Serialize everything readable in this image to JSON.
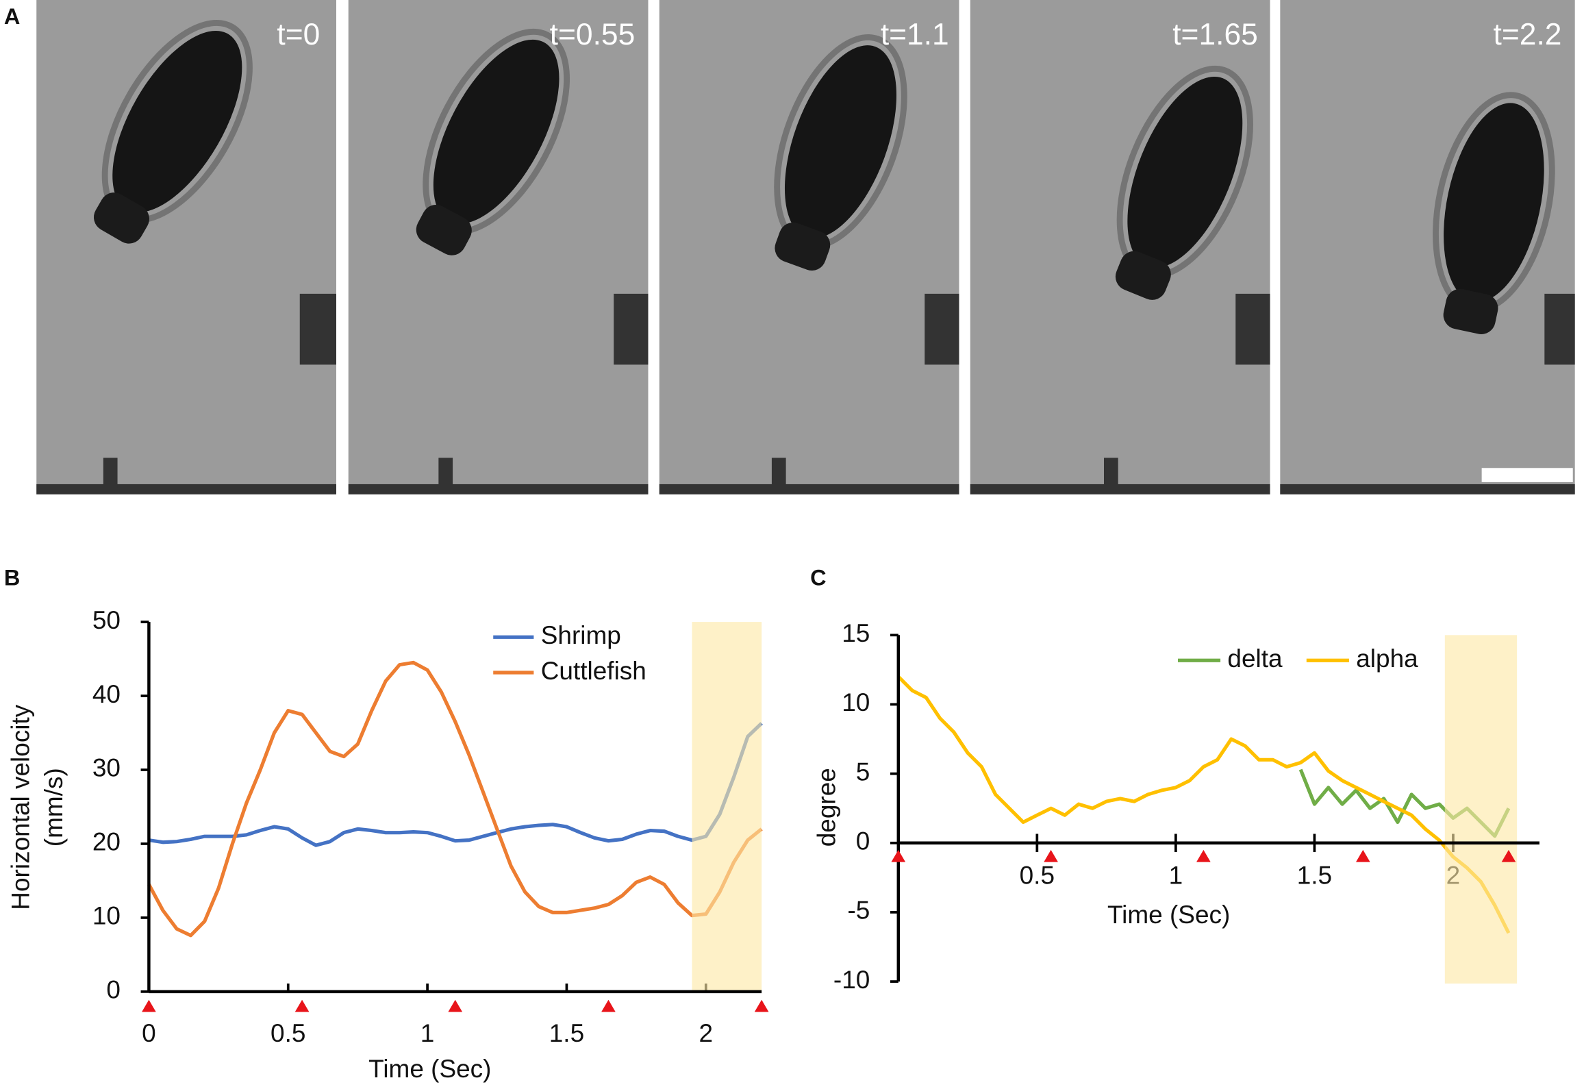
{
  "panel_a": {
    "letter": "A",
    "frames": [
      "t=0",
      "t=0.55",
      "t=1.1",
      "t=1.65",
      "t=2.2"
    ]
  },
  "chart_data": [
    {
      "type": "line",
      "letter": "B",
      "x_label": "Time (Sec)",
      "y_label": [
        "Horizontal velocity",
        "(mm/s)"
      ],
      "x": [
        0,
        0.05,
        0.1,
        0.15,
        0.2,
        0.25,
        0.3,
        0.35,
        0.4,
        0.45,
        0.5,
        0.55,
        0.6,
        0.65,
        0.7,
        0.75,
        0.8,
        0.85,
        0.9,
        0.95,
        1,
        1.05,
        1.1,
        1.15,
        1.2,
        1.25,
        1.3,
        1.35,
        1.4,
        1.45,
        1.5,
        1.55,
        1.6,
        1.65,
        1.7,
        1.75,
        1.8,
        1.85,
        1.9,
        1.95,
        2,
        2.05,
        2.1,
        2.15,
        2.2
      ],
      "series": [
        {
          "name": "Shrimp",
          "color": "#4472c4",
          "values": [
            20.5,
            20.2,
            20.3,
            20.6,
            21,
            21,
            21,
            21.2,
            21.8,
            22.3,
            22,
            20.8,
            19.8,
            20.3,
            21.5,
            22,
            21.8,
            21.5,
            21.5,
            21.6,
            21.5,
            21,
            20.4,
            20.5,
            21,
            21.5,
            22,
            22.3,
            22.5,
            22.6,
            22.3,
            21.5,
            20.8,
            20.4,
            20.6,
            21.3,
            21.8,
            21.7,
            21,
            20.5,
            21,
            24,
            29,
            34.5,
            36.3
          ]
        },
        {
          "name": "Cuttlefish",
          "color": "#ed7d31",
          "values": [
            14.5,
            11,
            8.5,
            7.6,
            9.5,
            14,
            20,
            25.5,
            30,
            35,
            38,
            37.5,
            35,
            32.5,
            31.8,
            33.5,
            38,
            42,
            44.2,
            44.5,
            43.5,
            40.5,
            36.5,
            32,
            27,
            22,
            17,
            13.5,
            11.5,
            10.7,
            10.7,
            11,
            11.3,
            11.8,
            13,
            14.8,
            15.5,
            14.5,
            12,
            10.3,
            10.5,
            13.5,
            17.5,
            20.5,
            22
          ]
        }
      ],
      "xlim": [
        0,
        2.2
      ],
      "xticks": [
        0,
        0.5,
        1,
        1.5,
        2
      ],
      "ylim": [
        0,
        50
      ],
      "yticks": [
        0,
        10,
        20,
        30,
        40,
        50
      ],
      "highlight": [
        1.95,
        2.2
      ],
      "highlight_color": "#fde9a6",
      "markers": [
        0,
        0.55,
        1.1,
        1.65,
        2.2
      ],
      "marker_color": "#e8141a"
    },
    {
      "type": "line",
      "letter": "C",
      "x_label": "Time (Sec)",
      "y_label": [
        "degree"
      ],
      "x": [
        0,
        0.05,
        0.1,
        0.15,
        0.2,
        0.25,
        0.3,
        0.35,
        0.4,
        0.45,
        0.5,
        0.55,
        0.6,
        0.65,
        0.7,
        0.75,
        0.8,
        0.85,
        0.9,
        0.95,
        1,
        1.05,
        1.1,
        1.15,
        1.2,
        1.25,
        1.3,
        1.35,
        1.4,
        1.45,
        1.5,
        1.55,
        1.6,
        1.65,
        1.7,
        1.75,
        1.8,
        1.85,
        1.9,
        1.95,
        2,
        2.05,
        2.1,
        2.15,
        2.2
      ],
      "series": [
        {
          "name": "delta",
          "color": "#70ad47",
          "values": [
            null,
            null,
            null,
            null,
            null,
            null,
            null,
            null,
            null,
            null,
            null,
            null,
            null,
            null,
            null,
            null,
            null,
            null,
            null,
            null,
            null,
            null,
            null,
            null,
            null,
            null,
            null,
            null,
            null,
            5.3,
            2.8,
            4,
            2.8,
            3.8,
            2.5,
            3.2,
            1.5,
            3.5,
            2.5,
            2.8,
            1.8,
            2.5,
            1.5,
            0.5,
            2.5
          ]
        },
        {
          "name": "alpha",
          "color": "#ffc000",
          "values": [
            12,
            11,
            10.5,
            9,
            8,
            6.5,
            5.5,
            3.5,
            2.5,
            1.5,
            2,
            2.5,
            2,
            2.8,
            2.5,
            3,
            3.2,
            3,
            3.5,
            3.8,
            4,
            4.5,
            5.5,
            6,
            7.5,
            7,
            6,
            6,
            5.5,
            5.8,
            6.5,
            5.2,
            4.5,
            4,
            3.5,
            3,
            2.5,
            2,
            1,
            0.2,
            -1,
            -1.8,
            -2.8,
            -4.5,
            -6.5
          ]
        }
      ],
      "xlim": [
        0,
        2.3
      ],
      "xticks": [
        0.5,
        1,
        1.5,
        2
      ],
      "ylim": [
        -10,
        15
      ],
      "yticks": [
        -10,
        -5,
        0,
        5,
        10,
        15
      ],
      "highlight": [
        1.97,
        2.23
      ],
      "highlight_color": "#fde9a6",
      "markers": [
        0,
        0.55,
        1.1,
        1.675,
        2.2
      ],
      "marker_color": "#e8141a"
    }
  ]
}
